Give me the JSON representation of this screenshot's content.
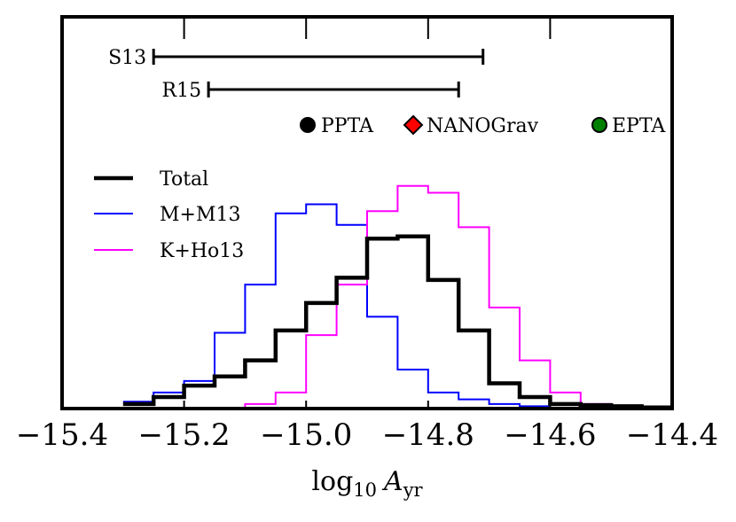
{
  "chart_data": {
    "type": "histogram",
    "title": "",
    "xlabel": "log10 A_yr",
    "xlabel_parts": {
      "base": "log",
      "sub": "10",
      "var": "A",
      "var_sub": "yr"
    },
    "ylabel": "",
    "xlim": [
      -15.4,
      -14.4
    ],
    "ylim": [
      0,
      1.0
    ],
    "xticks": [
      -15.4,
      -15.2,
      -15.0,
      -14.8,
      -14.6,
      -14.4
    ],
    "xtick_labels": [
      "−15.4",
      "−15.2",
      "−15.0",
      "−14.8",
      "−14.6",
      "−14.4"
    ],
    "bin_edges": [
      -15.3,
      -15.25,
      -15.2,
      -15.15,
      -15.1,
      -15.05,
      -15.0,
      -14.95,
      -14.9,
      -14.85,
      -14.8,
      -14.75,
      -14.7,
      -14.65,
      -14.6,
      -14.55,
      -14.5,
      -14.45,
      -14.4
    ],
    "series": [
      {
        "name": "Total",
        "color": "#000000",
        "width": 4.5,
        "values": [
          0.02,
          0.05,
          0.1,
          0.14,
          0.21,
          0.34,
          0.46,
          0.57,
          0.74,
          0.75,
          0.56,
          0.34,
          0.11,
          0.05,
          0.02,
          0.015,
          0.01,
          0.005
        ]
      },
      {
        "name": "M+M13",
        "color": "#0000ff",
        "width": 2,
        "values": [
          0.03,
          0.07,
          0.12,
          0.33,
          0.54,
          0.85,
          0.89,
          0.8,
          0.4,
          0.17,
          0.07,
          0.04,
          0.02,
          0.01,
          0.0,
          0.0,
          0.0,
          0.0
        ]
      },
      {
        "name": "K+Ho13",
        "color": "#ff00ff",
        "width": 2,
        "values": [
          0.0,
          0.0,
          0.0,
          0.0,
          0.02,
          0.07,
          0.32,
          0.54,
          0.86,
          0.97,
          0.94,
          0.79,
          0.44,
          0.21,
          0.07,
          0.02,
          0.005,
          0.0
        ]
      }
    ],
    "ranges": [
      {
        "name": "S13",
        "from": -15.25,
        "to": -14.71
      },
      {
        "name": "R15",
        "from": -15.16,
        "to": -14.75
      }
    ],
    "markers": [
      {
        "name": "PPTA",
        "symbol": "circle",
        "fill": "#000000"
      },
      {
        "name": "NANOGrav",
        "symbol": "diamond",
        "fill": "#ff0000"
      },
      {
        "name": "EPTA",
        "symbol": "circle",
        "fill": "#008000"
      }
    ],
    "top_ticks": [
      -15.2,
      -15.0,
      -14.8,
      -14.6
    ],
    "legend_position": "upper-left",
    "grid": false
  }
}
